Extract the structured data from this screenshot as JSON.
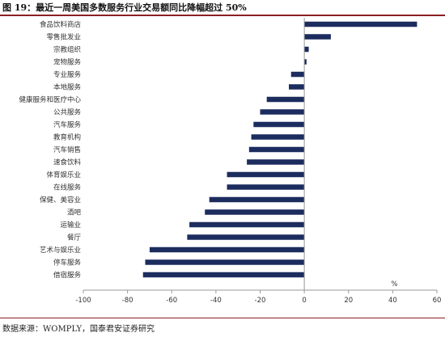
{
  "figure": {
    "title": "图 19：最近一周美国多数服务行业交易额同比降幅超过 50%",
    "source": "数据来源：WOMPLY，国泰君安证券研究"
  },
  "chart_data": {
    "type": "bar",
    "orientation": "horizontal",
    "categories": [
      "食品饮料商店",
      "零售批发业",
      "宗教组织",
      "宠物服务",
      "专业服务",
      "本地服务",
      "健康服务和医疗中心",
      "公共服务",
      "汽车服务",
      "教育机构",
      "汽车销售",
      "速食饮料",
      "体育娱乐业",
      "在线服务",
      "保健、美容业",
      "酒吧",
      "运输业",
      "餐厅",
      "艺术与娱乐业",
      "停车服务",
      "借宿服务"
    ],
    "values": [
      51,
      12,
      2,
      1,
      -6,
      -7,
      -17,
      -20,
      -23,
      -24,
      -25,
      -26,
      -35,
      -35,
      -43,
      -45,
      -52,
      -53,
      -70,
      -72,
      -73
    ],
    "xlim": [
      -100,
      60
    ],
    "xticks": [
      -100,
      -80,
      -60,
      -40,
      -20,
      0,
      20,
      40,
      60
    ],
    "unit_label": "%",
    "bar_color": "#1c2c5e",
    "grid": false
  }
}
